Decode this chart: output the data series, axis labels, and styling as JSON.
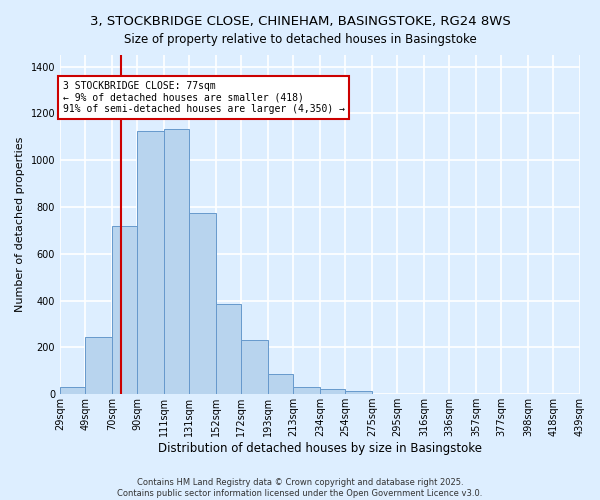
{
  "title": "3, STOCKBRIDGE CLOSE, CHINEHAM, BASINGSTOKE, RG24 8WS",
  "subtitle": "Size of property relative to detached houses in Basingstoke",
  "xlabel": "Distribution of detached houses by size in Basingstoke",
  "ylabel": "Number of detached properties",
  "bar_edges": [
    29,
    49,
    70,
    90,
    111,
    131,
    152,
    172,
    193,
    213,
    234,
    254,
    275,
    295,
    316,
    336,
    357,
    377,
    398,
    418,
    439
  ],
  "bar_heights": [
    30,
    245,
    720,
    1125,
    1135,
    775,
    385,
    230,
    85,
    30,
    20,
    15,
    0,
    0,
    0,
    0,
    0,
    0,
    0,
    0
  ],
  "bar_color": "#b8d4ee",
  "bar_edge_color": "#6699cc",
  "property_line_x": 77,
  "property_line_color": "#cc0000",
  "annotation_text": "3 STOCKBRIDGE CLOSE: 77sqm\n← 9% of detached houses are smaller (418)\n91% of semi-detached houses are larger (4,350) →",
  "annotation_box_color": "#ffffff",
  "annotation_box_edge": "#cc0000",
  "ylim": [
    0,
    1450
  ],
  "tick_labels": [
    "29sqm",
    "49sqm",
    "70sqm",
    "90sqm",
    "111sqm",
    "131sqm",
    "152sqm",
    "172sqm",
    "193sqm",
    "213sqm",
    "234sqm",
    "254sqm",
    "275sqm",
    "295sqm",
    "316sqm",
    "336sqm",
    "357sqm",
    "377sqm",
    "398sqm",
    "418sqm",
    "439sqm"
  ],
  "footer_line1": "Contains HM Land Registry data © Crown copyright and database right 2025.",
  "footer_line2": "Contains public sector information licensed under the Open Government Licence v3.0.",
  "bg_color": "#ddeeff",
  "plot_bg_color": "#ddeeff",
  "grid_color": "#ffffff",
  "title_fontsize": 9.5,
  "subtitle_fontsize": 8.5,
  "xlabel_fontsize": 8.5,
  "ylabel_fontsize": 8,
  "tick_fontsize": 7,
  "annotation_fontsize": 7,
  "footer_fontsize": 6
}
